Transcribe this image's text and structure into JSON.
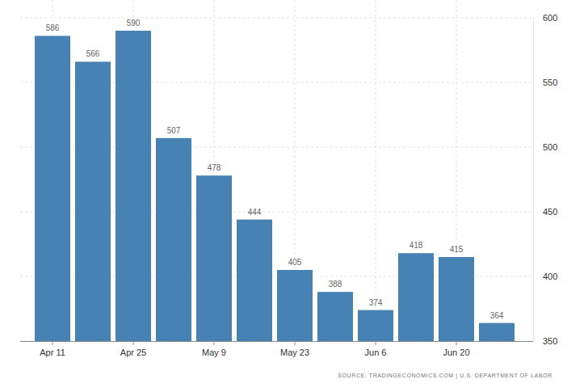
{
  "chart_data": {
    "type": "bar",
    "categories": [
      "Apr 11",
      null,
      "Apr 25",
      null,
      "May 9",
      null,
      "May 23",
      null,
      "Jun 6",
      null,
      "Jun 20",
      null
    ],
    "values": [
      586,
      566,
      590,
      507,
      478,
      444,
      405,
      388,
      374,
      418,
      415,
      364
    ],
    "color": "#4682b4",
    "ylim": [
      350,
      600
    ],
    "yticks": [
      350,
      400,
      450,
      500,
      550,
      600
    ],
    "grid": true,
    "data_labels": true,
    "source": "SOURCE: TRADINGECONOMICS.COM | U.S. DEPARTMENT OF LABOR"
  }
}
